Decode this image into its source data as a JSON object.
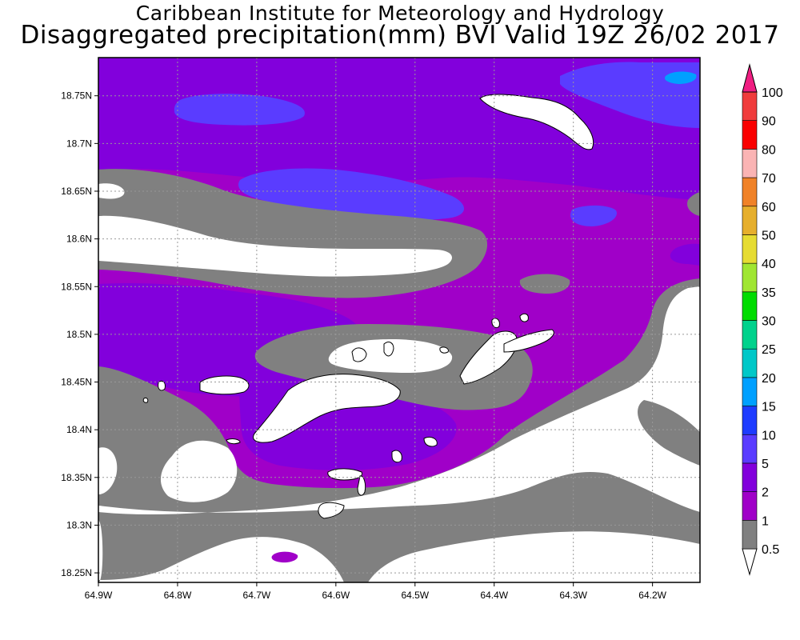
{
  "header": {
    "title_line1": "Caribbean Institute for Meteorology and Hydrology",
    "title_line2": "Disaggregated precipitation(mm) BVI Valid 19Z 26/02 2017"
  },
  "map": {
    "lon_range": [
      -64.9,
      -64.14
    ],
    "lat_range": [
      18.24,
      18.79
    ],
    "lon_ticks": [
      {
        "value": -64.9,
        "label": "64.9W"
      },
      {
        "value": -64.8,
        "label": "64.8W"
      },
      {
        "value": -64.7,
        "label": "64.7W"
      },
      {
        "value": -64.6,
        "label": "64.6W"
      },
      {
        "value": -64.5,
        "label": "64.5W"
      },
      {
        "value": -64.4,
        "label": "64.4W"
      },
      {
        "value": -64.3,
        "label": "64.3W"
      },
      {
        "value": -64.2,
        "label": "64.2W"
      }
    ],
    "lat_ticks": [
      {
        "value": 18.75,
        "label": "18.75N"
      },
      {
        "value": 18.7,
        "label": "18.7N"
      },
      {
        "value": 18.65,
        "label": "18.65N"
      },
      {
        "value": 18.6,
        "label": "18.6N"
      },
      {
        "value": 18.55,
        "label": "18.55N"
      },
      {
        "value": 18.5,
        "label": "18.5N"
      },
      {
        "value": 18.45,
        "label": "18.45N"
      },
      {
        "value": 18.4,
        "label": "18.4N"
      },
      {
        "value": 18.35,
        "label": "18.35N"
      },
      {
        "value": 18.3,
        "label": "18.3N"
      },
      {
        "value": 18.25,
        "label": "18.25N"
      }
    ],
    "grid": true
  },
  "colorbar": {
    "levels": [
      {
        "label": "0.5",
        "color": "#ffffff"
      },
      {
        "label": "1",
        "color": "#808080"
      },
      {
        "label": "2",
        "color": "#a000c8"
      },
      {
        "label": "5",
        "color": "#8200dc"
      },
      {
        "label": "10",
        "color": "#5a3cff"
      },
      {
        "label": "15",
        "color": "#1e3cff"
      },
      {
        "label": "20",
        "color": "#00a0ff"
      },
      {
        "label": "25",
        "color": "#00c8c8"
      },
      {
        "label": "30",
        "color": "#00d28c"
      },
      {
        "label": "35",
        "color": "#00dc00"
      },
      {
        "label": "40",
        "color": "#a0e632"
      },
      {
        "label": "50",
        "color": "#e6dc32"
      },
      {
        "label": "60",
        "color": "#e6af2d"
      },
      {
        "label": "70",
        "color": "#f08228"
      },
      {
        "label": "80",
        "color": "#fab4b4"
      },
      {
        "label": "90",
        "color": "#fa0000"
      },
      {
        "label": "100",
        "color": "#f03c3c"
      }
    ],
    "top_cap_color": "#f01e82"
  }
}
